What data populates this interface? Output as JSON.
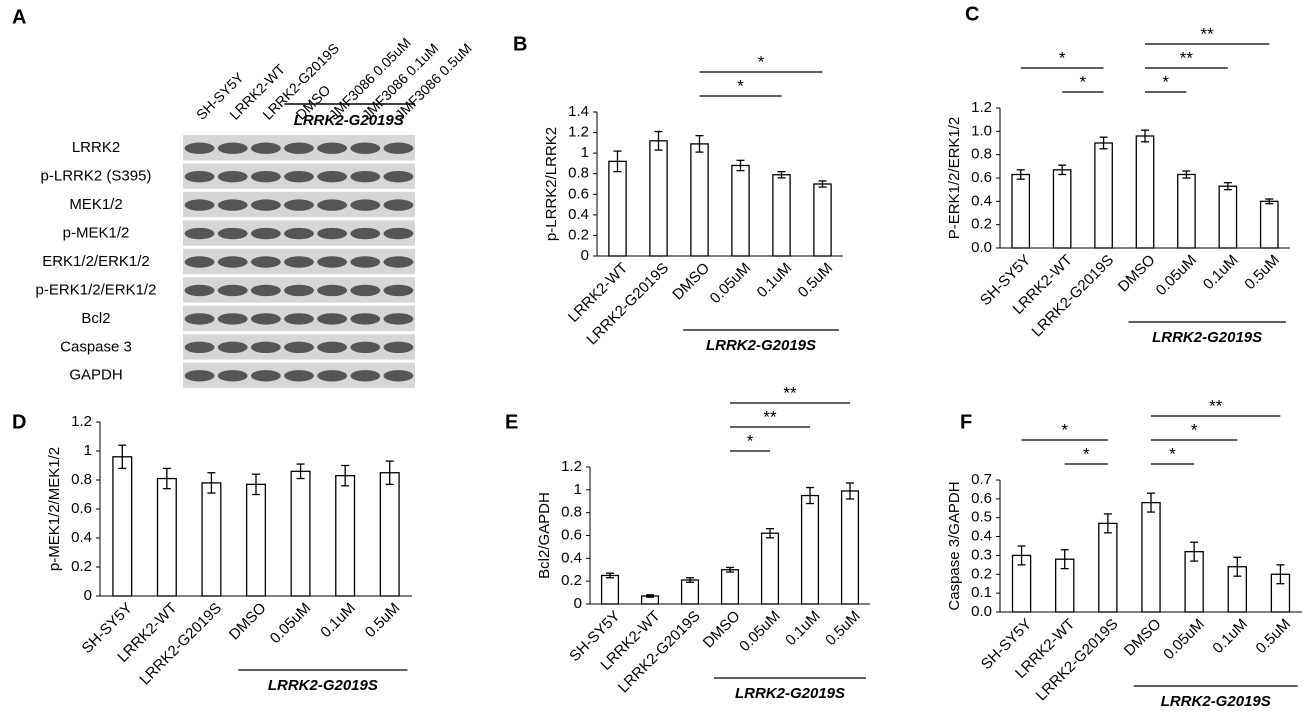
{
  "blot": {
    "label": "A",
    "lanes": [
      "SH-SY5Y",
      "LRRK2-WT",
      "LRRK2-G2019S",
      "DMSO",
      "JMF3086 0.05uM",
      "JMF3086 0.1uM",
      "JMF3086 0.5uM"
    ],
    "rows": [
      "LRRK2",
      "p-LRRK2 (S395)",
      "MEK1/2",
      "p-MEK1/2",
      "ERK1/2/ERK1/2",
      "p-ERK1/2/ERK1/2",
      "Bcl2",
      "Caspase 3",
      "GAPDH"
    ],
    "group": {
      "label": "LRRK2-G2019S",
      "from": "DMSO",
      "to": "JMF3086 0.5uM"
    }
  },
  "chart_data": [
    {
      "type": "bar",
      "label": "B",
      "ylabel": "p-LRRK2/LRRK2",
      "categories": [
        "LRRK2-WT",
        "LRRK2-G2019S",
        "DMSO",
        "0.05uM",
        "0.1uM",
        "0.5uM"
      ],
      "values": [
        0.92,
        1.12,
        1.09,
        0.88,
        0.79,
        0.7
      ],
      "errors": [
        0.1,
        0.09,
        0.08,
        0.05,
        0.03,
        0.03
      ],
      "color": "#ffffff",
      "edgecolor": "#000000",
      "ylim": [
        0,
        1.4
      ],
      "yticks": [
        0,
        0.2,
        0.4,
        0.6,
        0.8,
        1,
        1.2,
        1.4
      ],
      "group": {
        "label": "LRRK2-G2019S",
        "from": "DMSO",
        "to": "0.5uM"
      },
      "significance": [
        {
          "from": "DMSO",
          "to": "0.1uM",
          "label": "*"
        },
        {
          "from": "DMSO",
          "to": "0.5uM",
          "label": "*"
        }
      ]
    },
    {
      "type": "bar",
      "label": "C",
      "ylabel": "P-ERK1/2/ERK1/2",
      "categories": [
        "SH-SY5Y",
        "LRRK2-WT",
        "LRRK2-G2019S",
        "DMSO",
        "0.05uM",
        "0.1uM",
        "0.5uM"
      ],
      "values": [
        0.63,
        0.67,
        0.9,
        0.96,
        0.63,
        0.53,
        0.4
      ],
      "errors": [
        0.04,
        0.04,
        0.05,
        0.05,
        0.03,
        0.03,
        0.02
      ],
      "color": "#ffffff",
      "edgecolor": "#000000",
      "ylim": [
        0,
        1.2
      ],
      "yticks": [
        {
          "value": 0,
          "label": "0.0"
        },
        0.2,
        0.4,
        0.6,
        0.8,
        {
          "value": 1,
          "label": "1.0"
        },
        1.2
      ],
      "group": {
        "label": "LRRK2-G2019S",
        "from": "DMSO",
        "to": "0.5uM"
      },
      "significance": [
        {
          "from": "LRRK2-WT",
          "to": "LRRK2-G2019S",
          "label": "*"
        },
        {
          "from": "SH-SY5Y",
          "to": "LRRK2-G2019S",
          "label": "*"
        },
        {
          "from": "DMSO",
          "to": "0.05uM",
          "label": "*"
        },
        {
          "from": "DMSO",
          "to": "0.1uM",
          "label": "**"
        },
        {
          "from": "DMSO",
          "to": "0.5uM",
          "label": "**"
        }
      ]
    },
    {
      "type": "bar",
      "label": "D",
      "ylabel": "p-MEK1/2/MEK1/2",
      "categories": [
        "SH-SY5Y",
        "LRRK2-WT",
        "LRRK2-G2019S",
        "DMSO",
        "0.05uM",
        "0.1uM",
        "0.5uM"
      ],
      "values": [
        0.96,
        0.81,
        0.78,
        0.77,
        0.86,
        0.83,
        0.85
      ],
      "errors": [
        0.08,
        0.07,
        0.07,
        0.07,
        0.05,
        0.07,
        0.08
      ],
      "color": "#ffffff",
      "edgecolor": "#000000",
      "ylim": [
        0,
        1.2
      ],
      "yticks": [
        0,
        0.2,
        0.4,
        0.6,
        0.8,
        1,
        1.2
      ],
      "group": {
        "label": "LRRK2-G2019S",
        "from": "DMSO",
        "to": "0.5uM"
      },
      "significance": []
    },
    {
      "type": "bar",
      "label": "E",
      "ylabel": "Bcl2/GAPDH",
      "categories": [
        "SH-SY5Y",
        "LRRK2-WT",
        "LRRK2-G2019S",
        "DMSO",
        "0.05uM",
        "0.1uM",
        "0.5uM"
      ],
      "values": [
        0.25,
        0.07,
        0.21,
        0.3,
        0.62,
        0.95,
        0.99
      ],
      "errors": [
        0.02,
        0.01,
        0.02,
        0.02,
        0.04,
        0.07,
        0.07
      ],
      "color": "#ffffff",
      "edgecolor": "#000000",
      "ylim": [
        0,
        1.2
      ],
      "yticks": [
        0,
        0.2,
        0.4,
        0.6,
        0.8,
        1,
        1.2
      ],
      "group": {
        "label": "LRRK2-G2019S",
        "from": "DMSO",
        "to": "0.5uM"
      },
      "significance": [
        {
          "from": "DMSO",
          "to": "0.05uM",
          "label": "*"
        },
        {
          "from": "DMSO",
          "to": "0.1uM",
          "label": "**"
        },
        {
          "from": "DMSO",
          "to": "0.5uM",
          "label": "**"
        }
      ]
    },
    {
      "type": "bar",
      "label": "F",
      "ylabel": "Caspase 3/GAPDH",
      "categories": [
        "SH-SY5Y",
        "LRRK2-WT",
        "LRRK2-G2019S",
        "DMSO",
        "0.05uM",
        "0.1uM",
        "0.5uM"
      ],
      "values": [
        0.3,
        0.28,
        0.47,
        0.58,
        0.32,
        0.24,
        0.2
      ],
      "errors": [
        0.05,
        0.05,
        0.05,
        0.05,
        0.05,
        0.05,
        0.05
      ],
      "color": "#ffffff",
      "edgecolor": "#000000",
      "ylim": [
        0,
        0.7
      ],
      "yticks": [
        {
          "value": 0,
          "label": "0.0"
        },
        0.1,
        0.2,
        0.3,
        0.4,
        0.5,
        0.6,
        0.7
      ],
      "group": {
        "label": "LRRK2-G2019S",
        "from": "DMSO",
        "to": "0.5uM"
      },
      "significance": [
        {
          "from": "LRRK2-WT",
          "to": "LRRK2-G2019S",
          "label": "*"
        },
        {
          "from": "SH-SY5Y",
          "to": "LRRK2-G2019S",
          "label": "*"
        },
        {
          "from": "DMSO",
          "to": "0.05uM",
          "label": "*"
        },
        {
          "from": "DMSO",
          "to": "0.1uM",
          "label": "*"
        },
        {
          "from": "DMSO",
          "to": "0.5uM",
          "label": "**"
        }
      ]
    }
  ]
}
